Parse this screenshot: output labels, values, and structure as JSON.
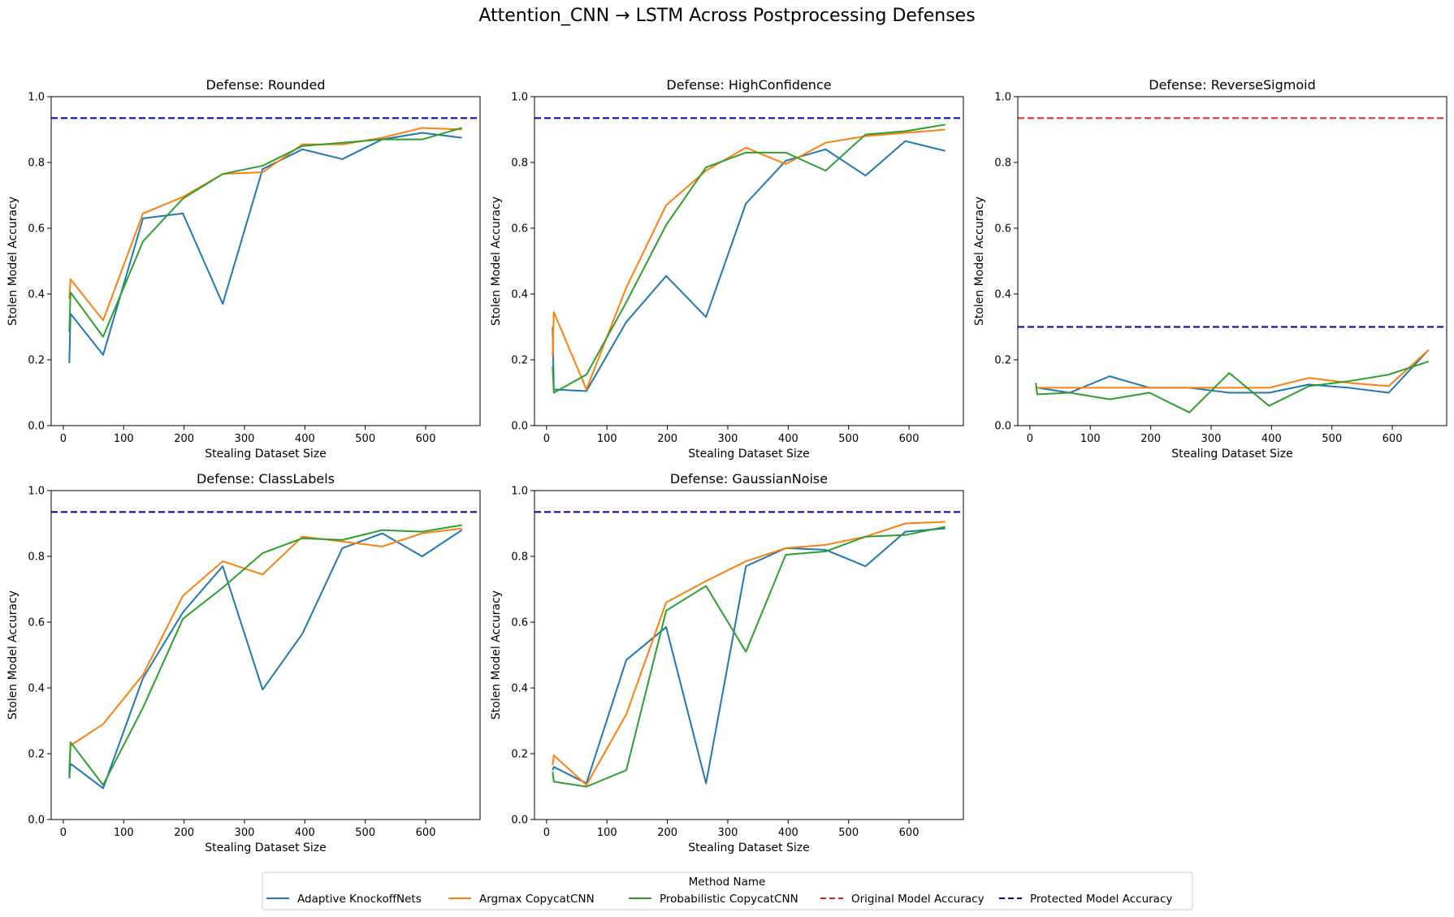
{
  "figure_title": "Attention_CNN → LSTM Across Postprocessing Defenses",
  "colors": {
    "Adaptive KnockoffNets": "#1f77b4",
    "Argmax CopycatCNN": "#ff7f0e",
    "Probabilistic CopycatCNN": "#2ca02c",
    "Original Model Accuracy": "#d62728",
    "Protected Model Accuracy": "#0000aa"
  },
  "legend": {
    "title": "Method Name",
    "placement": "bottom-center",
    "entries": [
      {
        "label": "Adaptive KnockoffNets",
        "style": "solid"
      },
      {
        "label": "Argmax CopycatCNN",
        "style": "solid"
      },
      {
        "label": "Probabilistic CopycatCNN",
        "style": "solid"
      },
      {
        "label": "Original Model Accuracy",
        "style": "dashed"
      },
      {
        "label": "Protected Model Accuracy",
        "style": "dashed"
      }
    ]
  },
  "chart_data": [
    {
      "type": "line",
      "title": "Defense: Rounded",
      "xlabel": "Stealing Dataset Size",
      "ylabel": "Stolen Model Accuracy",
      "xlim": [
        -20,
        690
      ],
      "ylim": [
        0,
        1.0
      ],
      "xticks": [
        0,
        100,
        200,
        300,
        400,
        500,
        600
      ],
      "yticks": [
        0.0,
        0.2,
        0.4,
        0.6,
        0.8,
        1.0
      ],
      "yticklabels": [
        "0.0",
        "0.2",
        "0.4",
        "0.6",
        "0.8",
        "1.0"
      ],
      "grid": false,
      "hlines": [
        {
          "name": "Protected Model Accuracy",
          "y": 0.935
        }
      ],
      "series": [
        {
          "name": "Adaptive KnockoffNets",
          "x": [
            10,
            12,
            66,
            132,
            198,
            264,
            330,
            396,
            462,
            528,
            594,
            660
          ],
          "y": [
            0.19,
            0.34,
            0.215,
            0.63,
            0.645,
            0.37,
            0.78,
            0.84,
            0.81,
            0.87,
            0.89,
            0.875
          ]
        },
        {
          "name": "Argmax CopycatCNN",
          "x": [
            10,
            12,
            66,
            132,
            198,
            264,
            330,
            396,
            462,
            528,
            594,
            660
          ],
          "y": [
            0.385,
            0.445,
            0.32,
            0.645,
            0.695,
            0.765,
            0.77,
            0.855,
            0.855,
            0.875,
            0.905,
            0.9
          ]
        },
        {
          "name": "Probabilistic CopycatCNN",
          "x": [
            10,
            12,
            66,
            132,
            198,
            264,
            330,
            396,
            462,
            528,
            594,
            660
          ],
          "y": [
            0.285,
            0.405,
            0.27,
            0.56,
            0.69,
            0.765,
            0.79,
            0.85,
            0.86,
            0.87,
            0.87,
            0.905
          ]
        }
      ]
    },
    {
      "type": "line",
      "title": "Defense: HighConfidence",
      "xlabel": "Stealing Dataset Size",
      "ylabel": "Stolen Model Accuracy",
      "xlim": [
        -20,
        690
      ],
      "ylim": [
        0,
        1.0
      ],
      "xticks": [
        0,
        100,
        200,
        300,
        400,
        500,
        600
      ],
      "yticks": [
        0.0,
        0.2,
        0.4,
        0.6,
        0.8,
        1.0
      ],
      "yticklabels": [
        "0.0",
        "0.2",
        "0.4",
        "0.6",
        "0.8",
        "1.0"
      ],
      "grid": false,
      "hlines": [
        {
          "name": "Protected Model Accuracy",
          "y": 0.935
        }
      ],
      "series": [
        {
          "name": "Adaptive KnockoffNets",
          "x": [
            10,
            12,
            66,
            132,
            198,
            264,
            330,
            396,
            462,
            528,
            594,
            660
          ],
          "y": [
            0.3,
            0.11,
            0.105,
            0.315,
            0.455,
            0.33,
            0.675,
            0.805,
            0.84,
            0.76,
            0.865,
            0.835
          ]
        },
        {
          "name": "Argmax CopycatCNN",
          "x": [
            10,
            12,
            66,
            132,
            198,
            264,
            330,
            396,
            462,
            528,
            594,
            660
          ],
          "y": [
            0.21,
            0.345,
            0.11,
            0.42,
            0.67,
            0.775,
            0.845,
            0.795,
            0.86,
            0.88,
            0.89,
            0.9
          ]
        },
        {
          "name": "Probabilistic CopycatCNN",
          "x": [
            10,
            12,
            66,
            132,
            198,
            264,
            330,
            396,
            462,
            528,
            594,
            660
          ],
          "y": [
            0.18,
            0.1,
            0.155,
            0.375,
            0.61,
            0.785,
            0.83,
            0.83,
            0.775,
            0.885,
            0.895,
            0.915
          ]
        }
      ]
    },
    {
      "type": "line",
      "title": "Defense: ReverseSigmoid",
      "xlabel": "Stealing Dataset Size",
      "ylabel": "Stolen Model Accuracy",
      "xlim": [
        -20,
        690
      ],
      "ylim": [
        0,
        1.0
      ],
      "xticks": [
        0,
        100,
        200,
        300,
        400,
        500,
        600
      ],
      "yticks": [
        0.0,
        0.2,
        0.4,
        0.6,
        0.8,
        1.0
      ],
      "yticklabels": [
        "0.0",
        "0.2",
        "0.4",
        "0.6",
        "0.8",
        "1.0"
      ],
      "grid": false,
      "hlines": [
        {
          "name": "Original Model Accuracy",
          "y": 0.935
        },
        {
          "name": "Protected Model Accuracy",
          "y": 0.3
        }
      ],
      "series": [
        {
          "name": "Adaptive KnockoffNets",
          "x": [
            10,
            12,
            66,
            132,
            198,
            264,
            330,
            396,
            462,
            528,
            594,
            660
          ],
          "y": [
            0.12,
            0.115,
            0.1,
            0.15,
            0.115,
            0.115,
            0.1,
            0.1,
            0.125,
            0.115,
            0.1,
            0.23
          ]
        },
        {
          "name": "Argmax CopycatCNN",
          "x": [
            10,
            12,
            66,
            132,
            198,
            264,
            330,
            396,
            462,
            528,
            594,
            660
          ],
          "y": [
            0.115,
            0.115,
            0.115,
            0.115,
            0.115,
            0.115,
            0.115,
            0.115,
            0.145,
            0.13,
            0.12,
            0.23
          ]
        },
        {
          "name": "Probabilistic CopycatCNN",
          "x": [
            10,
            12,
            66,
            132,
            198,
            264,
            330,
            396,
            462,
            528,
            594,
            660
          ],
          "y": [
            0.13,
            0.095,
            0.1,
            0.08,
            0.1,
            0.04,
            0.16,
            0.06,
            0.12,
            0.135,
            0.155,
            0.195
          ]
        }
      ]
    },
    {
      "type": "line",
      "title": "Defense: ClassLabels",
      "xlabel": "Stealing Dataset Size",
      "ylabel": "Stolen Model Accuracy",
      "xlim": [
        -20,
        690
      ],
      "ylim": [
        0,
        1.0
      ],
      "xticks": [
        0,
        100,
        200,
        300,
        400,
        500,
        600
      ],
      "yticks": [
        0.0,
        0.2,
        0.4,
        0.6,
        0.8,
        1.0
      ],
      "yticklabels": [
        "0.0",
        "0.2",
        "0.4",
        "0.6",
        "0.8",
        "1.0"
      ],
      "grid": false,
      "hlines": [
        {
          "name": "Protected Model Accuracy",
          "y": 0.935
        }
      ],
      "series": [
        {
          "name": "Adaptive KnockoffNets",
          "x": [
            10,
            12,
            66,
            132,
            198,
            264,
            330,
            396,
            462,
            528,
            594,
            660
          ],
          "y": [
            0.125,
            0.17,
            0.095,
            0.43,
            0.63,
            0.77,
            0.395,
            0.565,
            0.825,
            0.87,
            0.8,
            0.88
          ]
        },
        {
          "name": "Argmax CopycatCNN",
          "x": [
            10,
            12,
            66,
            132,
            198,
            264,
            330,
            396,
            462,
            528,
            594,
            660
          ],
          "y": [
            0.145,
            0.225,
            0.29,
            0.44,
            0.68,
            0.785,
            0.745,
            0.86,
            0.845,
            0.83,
            0.87,
            0.885
          ]
        },
        {
          "name": "Probabilistic CopycatCNN",
          "x": [
            10,
            12,
            66,
            132,
            198,
            264,
            330,
            396,
            462,
            528,
            594,
            660
          ],
          "y": [
            0.135,
            0.235,
            0.105,
            0.34,
            0.61,
            0.705,
            0.81,
            0.855,
            0.85,
            0.88,
            0.875,
            0.895
          ]
        }
      ]
    },
    {
      "type": "line",
      "title": "Defense: GaussianNoise",
      "xlabel": "Stealing Dataset Size",
      "ylabel": "Stolen Model Accuracy",
      "xlim": [
        -20,
        690
      ],
      "ylim": [
        0,
        1.0
      ],
      "xticks": [
        0,
        100,
        200,
        300,
        400,
        500,
        600
      ],
      "yticks": [
        0.0,
        0.2,
        0.4,
        0.6,
        0.8,
        1.0
      ],
      "yticklabels": [
        "0.0",
        "0.2",
        "0.4",
        "0.6",
        "0.8",
        "1.0"
      ],
      "grid": false,
      "hlines": [
        {
          "name": "Protected Model Accuracy",
          "y": 0.935
        }
      ],
      "series": [
        {
          "name": "Adaptive KnockoffNets",
          "x": [
            10,
            12,
            66,
            132,
            198,
            264,
            330,
            396,
            462,
            528,
            594,
            660
          ],
          "y": [
            0.15,
            0.16,
            0.11,
            0.485,
            0.585,
            0.11,
            0.77,
            0.825,
            0.82,
            0.77,
            0.875,
            0.885
          ]
        },
        {
          "name": "Argmax CopycatCNN",
          "x": [
            10,
            12,
            66,
            132,
            198,
            264,
            330,
            396,
            462,
            528,
            594,
            660
          ],
          "y": [
            0.165,
            0.195,
            0.105,
            0.32,
            0.66,
            0.725,
            0.785,
            0.825,
            0.835,
            0.86,
            0.9,
            0.905
          ]
        },
        {
          "name": "Probabilistic CopycatCNN",
          "x": [
            10,
            12,
            66,
            132,
            198,
            264,
            330,
            396,
            462,
            528,
            594,
            660
          ],
          "y": [
            0.145,
            0.115,
            0.1,
            0.15,
            0.635,
            0.71,
            0.51,
            0.805,
            0.815,
            0.86,
            0.865,
            0.89
          ]
        }
      ]
    }
  ]
}
